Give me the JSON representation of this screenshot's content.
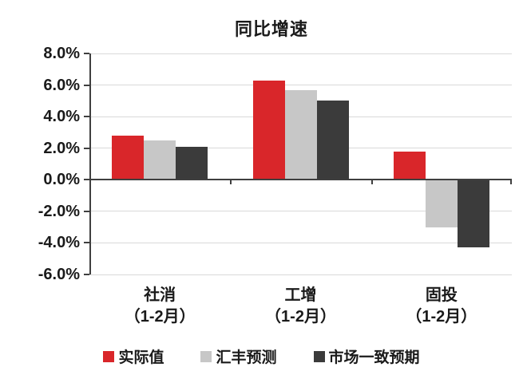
{
  "chart_data": {
    "type": "bar",
    "title": "同比增速",
    "categories": [
      {
        "line1": "社消",
        "line2": "（1-2月）"
      },
      {
        "line1": "工增",
        "line2": "（1-2月）"
      },
      {
        "line1": "固投",
        "line2": "（1-2月）"
      }
    ],
    "series": [
      {
        "name": "实际值",
        "color": "#d9262a",
        "values": [
          2.8,
          6.3,
          1.8
        ]
      },
      {
        "name": "汇丰预测",
        "color": "#c7c7c7",
        "values": [
          2.5,
          5.7,
          -3.0
        ]
      },
      {
        "name": "市场一致预期",
        "color": "#3b3b3b",
        "values": [
          2.1,
          5.0,
          -4.3
        ]
      }
    ],
    "ylim": [
      -6,
      8
    ],
    "ytick_step": 2,
    "yticks": [
      {
        "value": 8,
        "label": "8.0%"
      },
      {
        "value": 6,
        "label": "6.0%"
      },
      {
        "value": 4,
        "label": "4.0%"
      },
      {
        "value": 2,
        "label": "2.0%"
      },
      {
        "value": 0,
        "label": "0.0%"
      },
      {
        "value": -2,
        "label": "-2.0%"
      },
      {
        "value": -4,
        "label": "-4.0%"
      },
      {
        "value": -6,
        "label": "-6.0%"
      }
    ],
    "grid": true,
    "legend_position": "bottom",
    "xlabel": "",
    "ylabel": "",
    "colors": {
      "gridline": "#d9d9d9",
      "axis": "#3f3f3f",
      "text": "#1a1a1a",
      "background": "#ffffff"
    }
  }
}
